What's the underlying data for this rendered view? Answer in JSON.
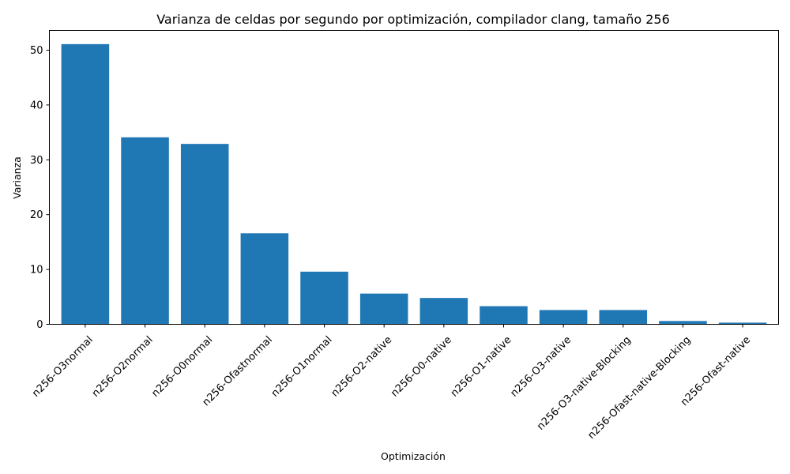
{
  "chart_data": {
    "type": "bar",
    "title": "Varianza de celdas por segundo por optimización, compilador clang, tamaño 256",
    "xlabel": "Optimización",
    "ylabel": "Varianza",
    "categories": [
      "n256-O3normal",
      "n256-O2normal",
      "n256-O0normal",
      "n256-Ofastnormal",
      "n256-O1normal",
      "n256-O2-native",
      "n256-O0-native",
      "n256-O1-native",
      "n256-O3-native",
      "n256-O3-native-Blocking",
      "n256-Ofast-native-Blocking",
      "n256-Ofast-native"
    ],
    "values": [
      51.1,
      34.1,
      32.9,
      16.6,
      9.6,
      5.6,
      4.8,
      3.3,
      2.6,
      2.6,
      0.6,
      0.3
    ],
    "ylim": [
      0,
      53.6
    ],
    "yticks": [
      0,
      10,
      20,
      30,
      40,
      50
    ],
    "bar_color": "#1f77b4",
    "grid": false,
    "legend": "none"
  }
}
